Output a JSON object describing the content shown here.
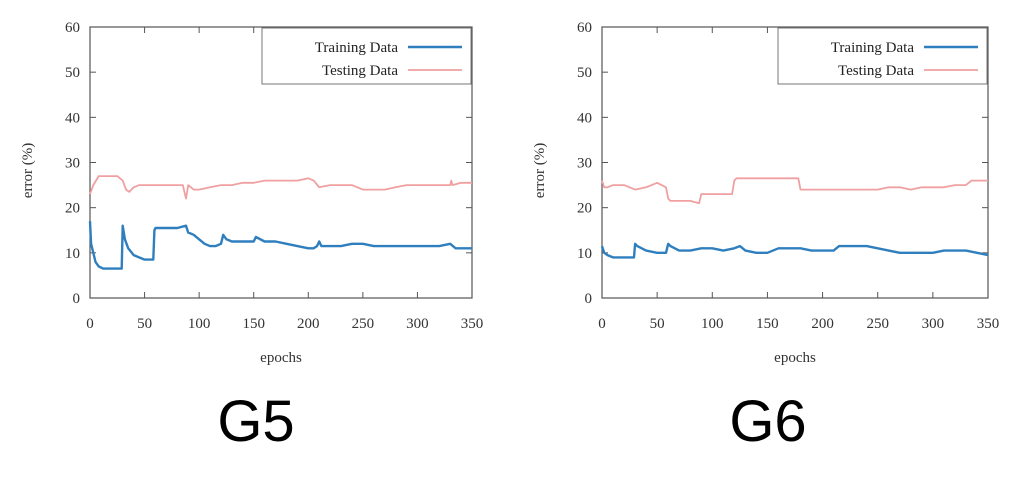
{
  "chart_data": [
    {
      "type": "line",
      "panel_label": "G5",
      "xlabel": "epochs",
      "ylabel": "error (%)",
      "xlim": [
        0,
        350
      ],
      "ylim": [
        0,
        60
      ],
      "xticks": [
        "0",
        "50",
        "100",
        "150",
        "200",
        "250",
        "300",
        "350"
      ],
      "yticks": [
        "0",
        "10",
        "20",
        "30",
        "40",
        "50",
        "60"
      ],
      "legend_position": "top-right",
      "series": [
        {
          "name": "Training Data",
          "color": "#2f7fbf",
          "x": [
            0,
            1,
            3,
            5,
            8,
            12,
            20,
            25,
            29,
            30,
            32,
            35,
            40,
            45,
            50,
            55,
            58,
            59,
            60,
            65,
            70,
            80,
            88,
            90,
            95,
            100,
            105,
            110,
            115,
            120,
            122,
            125,
            130,
            140,
            150,
            152,
            160,
            170,
            180,
            190,
            200,
            205,
            208,
            210,
            212,
            220,
            230,
            240,
            250,
            260,
            270,
            280,
            290,
            300,
            310,
            320,
            330,
            335,
            340,
            350
          ],
          "y": [
            17,
            12,
            10,
            8,
            7,
            6.5,
            6.5,
            6.5,
            6.5,
            16,
            13,
            11,
            9.5,
            9,
            8.5,
            8.5,
            8.5,
            15,
            15.5,
            15.5,
            15.5,
            15.5,
            16,
            14.5,
            14,
            13,
            12,
            11.5,
            11.5,
            12,
            14,
            13,
            12.5,
            12.5,
            12.5,
            13.5,
            12.5,
            12.5,
            12,
            11.5,
            11,
            11,
            11.5,
            12.5,
            11.5,
            11.5,
            11.5,
            12,
            12,
            11.5,
            11.5,
            11.5,
            11.5,
            11.5,
            11.5,
            11.5,
            12,
            11,
            11,
            11
          ]
        },
        {
          "name": "Testing Data",
          "color": "#f0a0a0",
          "x": [
            0,
            3,
            8,
            15,
            25,
            30,
            33,
            36,
            40,
            45,
            50,
            60,
            70,
            80,
            85,
            88,
            90,
            95,
            100,
            110,
            120,
            130,
            140,
            150,
            160,
            170,
            180,
            190,
            200,
            205,
            210,
            220,
            230,
            240,
            250,
            260,
            270,
            280,
            290,
            300,
            310,
            320,
            330,
            331,
            332,
            340,
            350
          ],
          "y": [
            23,
            25,
            27,
            27,
            27,
            26,
            24,
            23.5,
            24.5,
            25,
            25,
            25,
            25,
            25,
            25,
            22,
            25,
            24,
            24,
            24.5,
            25,
            25,
            25.5,
            25.5,
            26,
            26,
            26,
            26,
            26.5,
            26,
            24.5,
            25,
            25,
            25,
            24,
            24,
            24,
            24.5,
            25,
            25,
            25,
            25,
            25,
            26,
            25,
            25.5,
            25.5
          ]
        }
      ]
    },
    {
      "type": "line",
      "panel_label": "G6",
      "xlabel": "epochs",
      "ylabel": "error (%)",
      "xlim": [
        0,
        350
      ],
      "ylim": [
        0,
        60
      ],
      "xticks": [
        "0",
        "50",
        "100",
        "150",
        "200",
        "250",
        "300",
        "350"
      ],
      "yticks": [
        "0",
        "10",
        "20",
        "30",
        "40",
        "50",
        "60"
      ],
      "legend_position": "top-right",
      "series": [
        {
          "name": "Training Data",
          "color": "#2f7fbf",
          "x": [
            0,
            2,
            5,
            10,
            20,
            29,
            30,
            32,
            40,
            50,
            58,
            60,
            62,
            70,
            80,
            90,
            100,
            110,
            120,
            125,
            130,
            140,
            150,
            160,
            170,
            180,
            190,
            200,
            210,
            215,
            220,
            230,
            240,
            250,
            260,
            270,
            280,
            290,
            300,
            310,
            320,
            330,
            340,
            350
          ],
          "y": [
            11.5,
            10,
            9.5,
            9,
            9,
            9,
            12,
            11.5,
            10.5,
            10,
            10,
            12,
            11.5,
            10.5,
            10.5,
            11,
            11,
            10.5,
            11,
            11.5,
            10.5,
            10,
            10,
            11,
            11,
            11,
            10.5,
            10.5,
            10.5,
            11.5,
            11.5,
            11.5,
            11.5,
            11,
            10.5,
            10,
            10,
            10,
            10,
            10.5,
            10.5,
            10.5,
            10,
            9.5
          ]
        },
        {
          "name": "Testing Data",
          "color": "#f0a0a0",
          "x": [
            0,
            2,
            5,
            10,
            20,
            30,
            40,
            50,
            58,
            60,
            62,
            70,
            80,
            88,
            90,
            95,
            100,
            110,
            118,
            120,
            122,
            130,
            140,
            150,
            160,
            170,
            178,
            180,
            182,
            190,
            200,
            210,
            220,
            230,
            240,
            250,
            260,
            270,
            280,
            290,
            300,
            310,
            320,
            330,
            335,
            340,
            350
          ],
          "y": [
            26,
            24.5,
            24.5,
            25,
            25,
            24,
            24.5,
            25.5,
            24.5,
            22,
            21.5,
            21.5,
            21.5,
            21,
            23,
            23,
            23,
            23,
            23,
            26,
            26.5,
            26.5,
            26.5,
            26.5,
            26.5,
            26.5,
            26.5,
            24,
            24,
            24,
            24,
            24,
            24,
            24,
            24,
            24,
            24.5,
            24.5,
            24,
            24.5,
            24.5,
            24.5,
            25,
            25,
            26,
            26,
            26
          ]
        }
      ]
    }
  ]
}
